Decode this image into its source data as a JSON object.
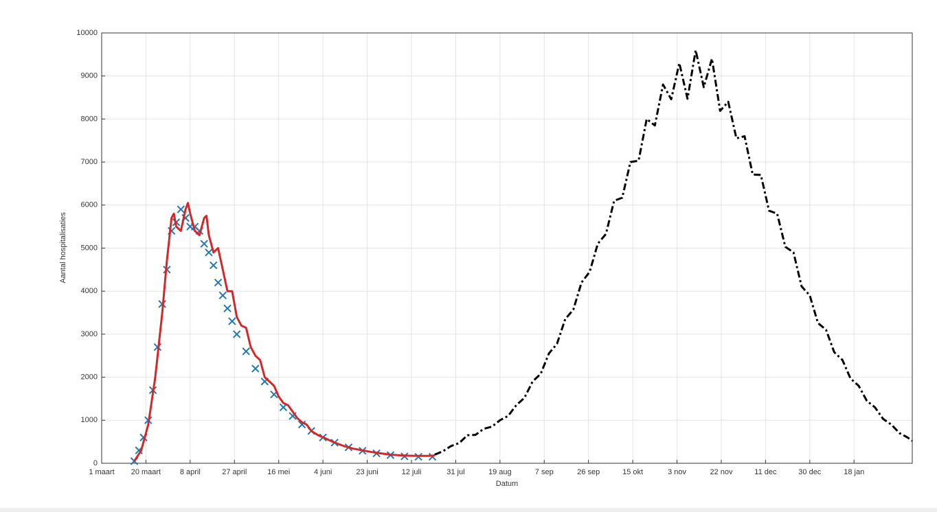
{
  "chart_data": {
    "type": "line",
    "xlabel": "Datum",
    "ylabel": "Aantal hospitalisaties",
    "xlim": [
      0,
      348
    ],
    "ylim": [
      0,
      10000
    ],
    "xticks": [
      {
        "value": 0,
        "label": "1 maart"
      },
      {
        "value": 19,
        "label": "20 maart"
      },
      {
        "value": 38,
        "label": "8 april"
      },
      {
        "value": 57,
        "label": "27 april"
      },
      {
        "value": 76,
        "label": "16 mei"
      },
      {
        "value": 95,
        "label": "4 juni"
      },
      {
        "value": 114,
        "label": "23 juni"
      },
      {
        "value": 133,
        "label": "12 juli"
      },
      {
        "value": 152,
        "label": "31 jul"
      },
      {
        "value": 171,
        "label": "19 aug"
      },
      {
        "value": 190,
        "label": "7 sep"
      },
      {
        "value": 209,
        "label": "26 sep"
      },
      {
        "value": 228,
        "label": "15 okt"
      },
      {
        "value": 247,
        "label": "3 nov"
      },
      {
        "value": 266,
        "label": "22 nov"
      },
      {
        "value": 285,
        "label": "11 dec"
      },
      {
        "value": 304,
        "label": "30 dec"
      },
      {
        "value": 323,
        "label": "18 jan"
      }
    ],
    "yticks": [
      0,
      1000,
      2000,
      3000,
      4000,
      5000,
      6000,
      7000,
      8000,
      9000,
      10000
    ],
    "grid": true,
    "series": [
      {
        "color": "#1f77b4",
        "style": "markers",
        "x": [
          14,
          16,
          18,
          20,
          22,
          24,
          26,
          28,
          30,
          32,
          34,
          36,
          38,
          40,
          42,
          44,
          46,
          48,
          50,
          52,
          54,
          56,
          58,
          62,
          66,
          70,
          74,
          78,
          82,
          86,
          90,
          95,
          100,
          106,
          112,
          118,
          124,
          130,
          136,
          142
        ],
        "values": [
          50,
          300,
          600,
          1000,
          1700,
          2700,
          3700,
          4500,
          5400,
          5600,
          5900,
          5700,
          5500,
          5500,
          5400,
          5100,
          4900,
          4600,
          4200,
          3900,
          3600,
          3300,
          3000,
          2600,
          2200,
          1900,
          1600,
          1300,
          1100,
          900,
          750,
          600,
          480,
          370,
          290,
          230,
          190,
          160,
          150,
          150
        ]
      },
      {
        "color": "#d62728",
        "style": "solid",
        "x": [
          14,
          17,
          20,
          23,
          26,
          28,
          30,
          31,
          32,
          34,
          36,
          37,
          38,
          40,
          42,
          44,
          45,
          46,
          48,
          50,
          52,
          54,
          56,
          58,
          60,
          62,
          64,
          66,
          68,
          70,
          72,
          74,
          76,
          78,
          80,
          82,
          84,
          86,
          88,
          90,
          93,
          96,
          100,
          104,
          108,
          112,
          116,
          120,
          124,
          128,
          132,
          136,
          140,
          143
        ],
        "values": [
          50,
          300,
          900,
          2000,
          3500,
          4700,
          5700,
          5800,
          5500,
          5400,
          5900,
          6050,
          5800,
          5400,
          5300,
          5700,
          5750,
          5300,
          4900,
          5000,
          4500,
          4000,
          4000,
          3400,
          3200,
          3150,
          2700,
          2500,
          2400,
          2000,
          1900,
          1800,
          1550,
          1400,
          1350,
          1200,
          1050,
          950,
          900,
          750,
          650,
          580,
          480,
          400,
          340,
          300,
          260,
          230,
          200,
          185,
          175,
          170,
          170,
          180
        ]
      },
      {
        "color": "#000000",
        "style": "dashdot",
        "x": [
          143,
          146.5,
          150,
          153.5,
          157,
          160.5,
          164,
          167.5,
          171,
          174.5,
          178,
          181.5,
          185,
          188.5,
          192,
          195.5,
          199,
          202.5,
          206,
          209.5,
          213,
          216.5,
          220,
          223.5,
          227,
          230.5,
          234,
          237.5,
          241,
          244.5,
          248,
          251.5,
          255,
          258.5,
          262,
          265.5,
          269,
          272.5,
          276,
          279.5,
          283,
          286.5,
          290,
          293.5,
          297,
          300.5,
          304,
          307.5,
          311,
          314.5,
          318,
          321.5,
          325,
          328.5,
          332,
          335.5,
          339,
          342.5,
          346,
          348
        ],
        "values": [
          200,
          280,
          400,
          470,
          650,
          660,
          800,
          850,
          1000,
          1100,
          1350,
          1520,
          1900,
          2080,
          2550,
          2780,
          3350,
          3570,
          4200,
          4450,
          5100,
          5330,
          6100,
          6170,
          7000,
          7030,
          8000,
          7850,
          8800,
          8460,
          9300,
          8470,
          9600,
          8740,
          9400,
          8190,
          8400,
          7550,
          7600,
          6710,
          6700,
          5870,
          5800,
          5030,
          4900,
          4110,
          3900,
          3260,
          3100,
          2580,
          2400,
          1970,
          1800,
          1450,
          1300,
          1030,
          900,
          700,
          600,
          520
        ]
      }
    ]
  }
}
